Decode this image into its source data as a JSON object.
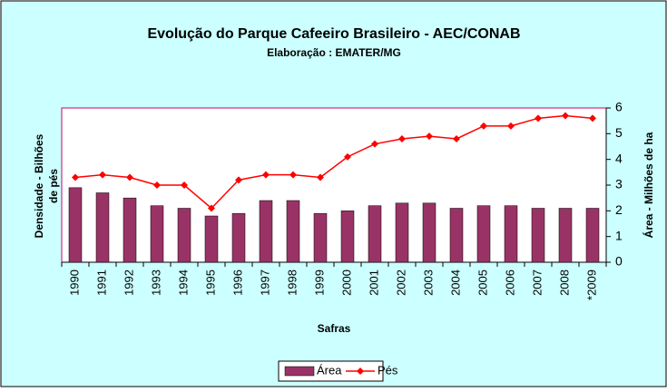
{
  "chart_data": {
    "type": "combo",
    "title": "Evolução do Parque Cafeeiro Brasileiro - AEC/CONAB",
    "subtitle": "Elaboração : EMATER/MG",
    "xlabel": "Safras",
    "ylabel": [
      "Densidade - Bilhões",
      "de pés"
    ],
    "y2label": "Área - Milhões de ha",
    "categories": [
      "1990",
      "1991",
      "1992",
      "1993",
      "1994",
      "1995",
      "1996",
      "1997",
      "1998",
      "1999",
      "2000",
      "2001",
      "2002",
      "2003",
      "2004",
      "2005",
      "2006",
      "2007",
      "2008",
      "*2009"
    ],
    "series": [
      {
        "name": "Área",
        "kind": "bar",
        "color": "#993366",
        "axis": "y2",
        "values": [
          2.9,
          2.7,
          2.5,
          2.2,
          2.1,
          1.8,
          1.9,
          2.4,
          2.4,
          1.9,
          2.0,
          2.2,
          2.3,
          2.3,
          2.1,
          2.2,
          2.2,
          2.1,
          2.1,
          2.1
        ]
      },
      {
        "name": "Pés",
        "kind": "line",
        "color": "#ff0000",
        "axis": "y2",
        "values": [
          3.3,
          3.4,
          3.3,
          3.0,
          3.0,
          2.1,
          3.2,
          3.4,
          3.4,
          3.3,
          4.1,
          4.6,
          4.8,
          4.9,
          4.8,
          5.3,
          5.3,
          5.6,
          5.7,
          5.6
        ]
      }
    ],
    "y2lim": [
      0,
      6
    ],
    "y2ticks": [
      0,
      1,
      2,
      3,
      4,
      5,
      6
    ],
    "legend": "bottom"
  }
}
